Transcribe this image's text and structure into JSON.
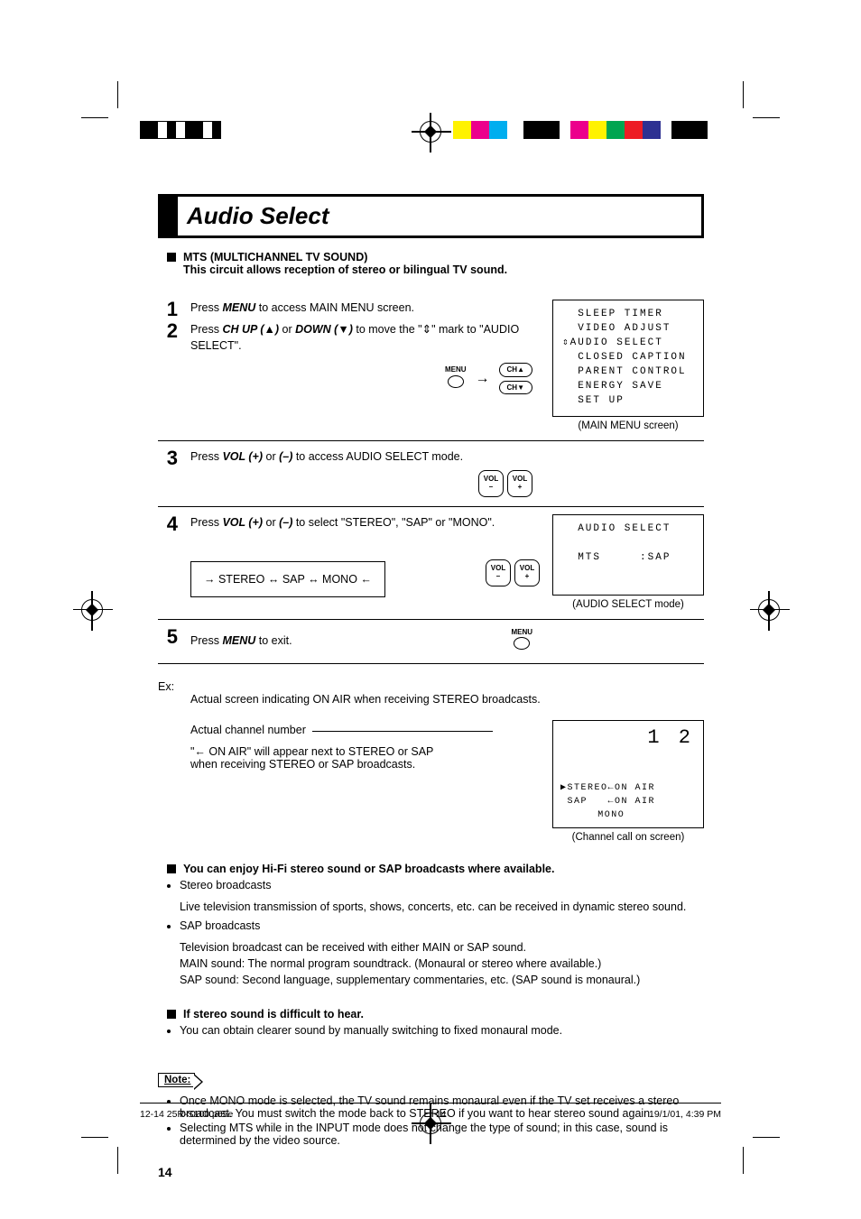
{
  "title": "Audio Select",
  "heading1_line1": "MTS (MULTICHANNEL TV SOUND)",
  "heading1_line2": "This circuit allows reception of stereo or bilingual TV sound.",
  "step1_pre": "Press ",
  "step1_b": "MENU",
  "step1_post": " to access MAIN MENU screen.",
  "step2_pre": "Press ",
  "step2_b1": "CH UP (",
  "step2_up": "▲",
  "step2_mid1": ")",
  "step2_or": " or ",
  "step2_b2": "DOWN (",
  "step2_dn": "▼",
  "step2_mid2": ")",
  "step2_post": " to move the \"",
  "step2_mark": "⇕",
  "step2_end": "\" mark to \"AUDIO SELECT\".",
  "btn_menu": "MENU",
  "btn_ch_up": "CH▲",
  "btn_ch_dn": "CH▼",
  "btn_vol": "VOL",
  "btn_plus": "+",
  "btn_minus": "–",
  "osd_main": "  SLEEP TIMER\n  VIDEO ADJUST\n⇕AUDIO SELECT\n  CLOSED CAPTION\n  PARENT CONTROL\n  ENERGY SAVE\n  SET UP",
  "osd_main_caption": "(MAIN MENU screen)",
  "step3_pre": "Press ",
  "step3_b1": "VOL (+)",
  "step3_or": " or ",
  "step3_b2": "(–)",
  "step3_post": " to access AUDIO SELECT mode.",
  "step4_pre": "Press ",
  "step4_b1": "VOL (+)",
  "step4_or": " or ",
  "step4_b2": "(–)",
  "step4_post": " to select \"STEREO\", \"SAP\" or \"MONO\".",
  "cycle_text": "→ STEREO ↔ SAP ↔ MONO ←",
  "osd_audio": "  AUDIO SELECT\n\n  MTS     :SAP",
  "osd_audio_caption": "(AUDIO SELECT mode)",
  "step5_pre": "Press ",
  "step5_b": "MENU",
  "step5_post": " to exit.",
  "ex_label": "Ex:",
  "ex_desc": "Actual screen indicating ON AIR when receiving STEREO broadcasts.",
  "ex_ptr1": "Actual channel number",
  "ex_ptr2": "\"← ON AIR\" will appear next to STEREO or SAP when receiving STEREO or SAP broadcasts.",
  "ch_num": "1 2",
  "ch_list": "▶STEREO←ON AIR\n SAP   ←ON AIR\n MONO",
  "ch_caption": "(Channel call on screen)",
  "hifi_heading": "You can enjoy Hi-Fi stereo sound or SAP broadcasts where available.",
  "hifi_b1": "Stereo broadcasts",
  "hifi_b1_desc": "Live television transmission of sports, shows, concerts, etc. can be received in dynamic stereo sound.",
  "hifi_b2": "SAP broadcasts",
  "hifi_b2_desc1": "Television broadcast can be received with either MAIN or SAP sound.",
  "hifi_b2_desc2": "MAIN sound: The normal program soundtrack. (Monaural or stereo where available.)",
  "hifi_b2_desc3": "SAP sound: Second language, supplementary commentaries, etc. (SAP sound is monaural.)",
  "diff_heading": "If stereo sound is difficult to hear.",
  "diff_b1": "You can obtain clearer sound by manually switching to fixed monaural mode.",
  "note_label": "Note:",
  "note_b1": "Once MONO mode is selected, the TV sound remains monaural even if the TV set receives a stereo broadcast. You must switch the mode back to STEREO if you want to hear stereo sound again.",
  "note_b2": "Selecting MTS while in the INPUT mode does not change the type of sound; in this case, sound is determined by the video source.",
  "page_num": "14",
  "footer_file": "12-14 25R-S100.p65e",
  "footer_page": "14",
  "footer_date": "19/1/01, 4:39 PM",
  "colors": {
    "bars": [
      "#fff200",
      "#ec008c",
      "#00aeef",
      "#5a5a5a",
      "#d1d1d1",
      "#ec008c",
      "#fff200",
      "#00a551",
      "#ed1c24",
      "#2e3192",
      "#d1d1d1",
      "#5a5a5a"
    ]
  }
}
